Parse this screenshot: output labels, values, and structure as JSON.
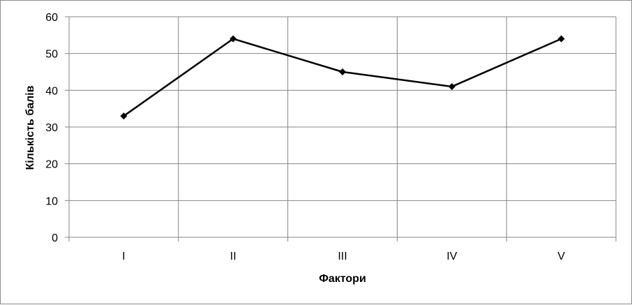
{
  "chart_data": {
    "type": "line",
    "title": "",
    "xlabel": "Фактори",
    "ylabel": "Кількість балів",
    "categories": [
      "I",
      "II",
      "III",
      "IV",
      "V"
    ],
    "series": [
      {
        "values": [
          33,
          54,
          45,
          41,
          54
        ]
      }
    ],
    "ylim": [
      0,
      60
    ],
    "yticks": [
      0,
      10,
      20,
      30,
      40,
      50,
      60
    ],
    "grid": true,
    "legend": "none",
    "colors": {
      "line": "#000000",
      "grid": "#868686",
      "frame": "#8c8c8c"
    }
  }
}
